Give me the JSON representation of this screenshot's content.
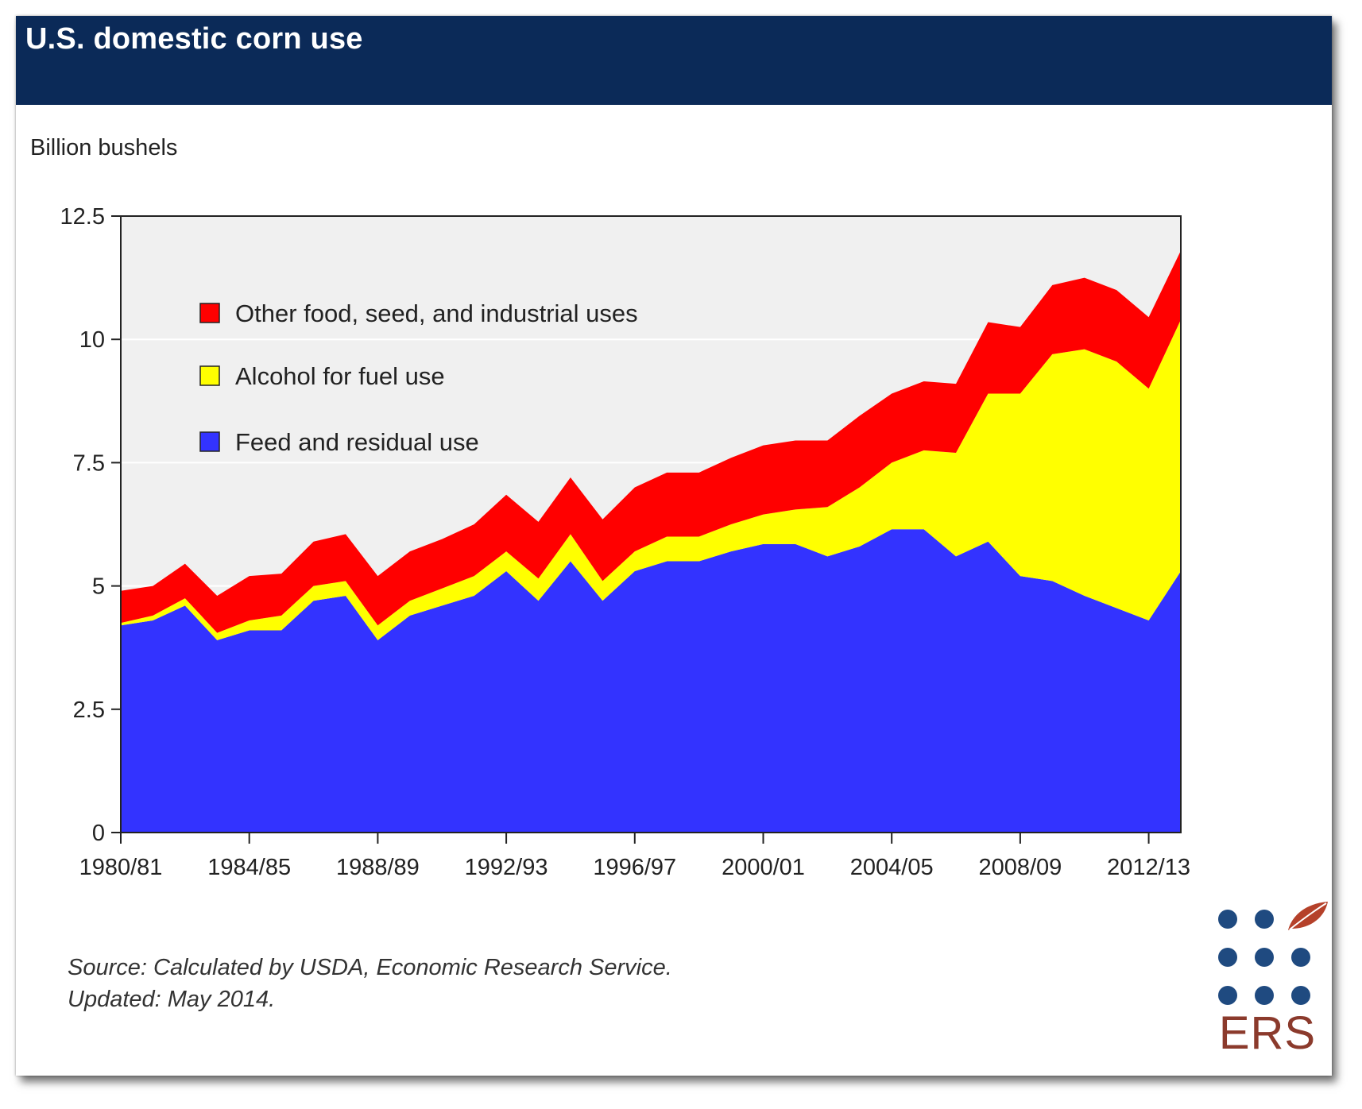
{
  "header": {
    "title": "U.S. domestic corn use"
  },
  "source": {
    "line1": "Source: Calculated by USDA, Economic Research Service.",
    "line2": "Updated: May 2014."
  },
  "logo": {
    "text": "ERS",
    "dot_color": "#1f4a80",
    "leaf_color": "#b5412a",
    "text_color": "#8b3a2c",
    "icon": "leaf-icon"
  },
  "colors": {
    "header_bg": "#0b2a58",
    "plot_bg": "#f0f0f0"
  },
  "chart_data": {
    "type": "area",
    "stacked": true,
    "title": "U.S. domestic corn use",
    "ylabel": "Billion bushels",
    "xlabel": "",
    "ylim": [
      0,
      12.5
    ],
    "yticks": [
      0,
      2.5,
      5,
      7.5,
      10,
      12.5
    ],
    "ytick_labels": [
      "0",
      "2.5",
      "5",
      "7.5",
      "10",
      "12.5"
    ],
    "xtick_labels": [
      "1980/81",
      "1984/85",
      "1988/89",
      "1992/93",
      "1996/97",
      "2000/01",
      "2004/05",
      "2008/09",
      "2012/13"
    ],
    "categories": [
      "1980/81",
      "1981/82",
      "1982/83",
      "1983/84",
      "1984/85",
      "1985/86",
      "1986/87",
      "1987/88",
      "1988/89",
      "1989/90",
      "1990/91",
      "1991/92",
      "1992/93",
      "1993/94",
      "1994/95",
      "1995/96",
      "1996/97",
      "1997/98",
      "1998/99",
      "1999/00",
      "2000/01",
      "2001/02",
      "2002/03",
      "2003/04",
      "2004/05",
      "2005/06",
      "2006/07",
      "2007/08",
      "2008/09",
      "2009/10",
      "2010/11",
      "2011/12",
      "2012/13",
      "2013/14"
    ],
    "grid": true,
    "legend_position": "top-left",
    "series": [
      {
        "name": "Feed and residual use",
        "color": "#3333ff",
        "values": [
          4.2,
          4.3,
          4.6,
          3.9,
          4.1,
          4.1,
          4.7,
          4.8,
          3.9,
          4.4,
          4.6,
          4.8,
          5.3,
          4.7,
          5.5,
          4.7,
          5.3,
          5.5,
          5.5,
          5.7,
          5.85,
          5.85,
          5.6,
          5.8,
          6.15,
          6.15,
          5.6,
          5.9,
          5.2,
          5.1,
          4.8,
          4.55,
          4.3,
          5.3
        ]
      },
      {
        "name": "Alcohol for fuel use",
        "color": "#ffff00",
        "values": [
          0.05,
          0.1,
          0.15,
          0.15,
          0.2,
          0.3,
          0.3,
          0.3,
          0.3,
          0.3,
          0.35,
          0.4,
          0.4,
          0.45,
          0.55,
          0.4,
          0.4,
          0.5,
          0.5,
          0.55,
          0.6,
          0.7,
          1.0,
          1.2,
          1.35,
          1.6,
          2.1,
          3.0,
          3.7,
          4.6,
          5.0,
          5.0,
          4.7,
          5.1
        ]
      },
      {
        "name": "Other food, seed, and industrial uses",
        "color": "#ff0000",
        "values": [
          0.65,
          0.6,
          0.7,
          0.75,
          0.9,
          0.85,
          0.9,
          0.95,
          1.0,
          1.0,
          1.0,
          1.05,
          1.15,
          1.15,
          1.15,
          1.25,
          1.3,
          1.3,
          1.3,
          1.35,
          1.4,
          1.4,
          1.35,
          1.45,
          1.4,
          1.4,
          1.4,
          1.45,
          1.35,
          1.4,
          1.45,
          1.45,
          1.45,
          1.4
        ]
      }
    ]
  }
}
